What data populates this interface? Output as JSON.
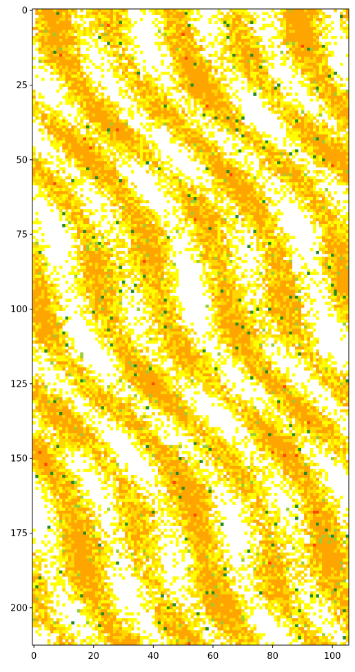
{
  "chart_data": {
    "type": "heatmap",
    "title": "",
    "xlabel": "",
    "ylabel": "",
    "grid_shape": {
      "rows": 213,
      "cols": 106
    },
    "xlim": [
      -0.5,
      105.5
    ],
    "ylim": [
      212.5,
      -0.5
    ],
    "y_axis_inverted": true,
    "x_ticks": [
      0,
      20,
      40,
      60,
      80,
      100
    ],
    "x_tick_labels": [
      "0",
      "20",
      "40",
      "60",
      "80",
      "100"
    ],
    "y_ticks": [
      0,
      25,
      50,
      75,
      100,
      125,
      150,
      175,
      200
    ],
    "y_tick_labels": [
      "0",
      "25",
      "50",
      "75",
      "100",
      "125",
      "150",
      "175",
      "200"
    ],
    "colormap": [
      "#ffffff",
      "#ffff00",
      "#ffd700",
      "#ffa500",
      "#ff4500",
      "#9acd32",
      "#228b22"
    ],
    "grid": false,
    "legend": "none",
    "colorbar": false,
    "pattern": "speckled yellow/orange texture with diagonal streaks running top-left to bottom-right, scattered green pixels and sparse red hotspots"
  }
}
